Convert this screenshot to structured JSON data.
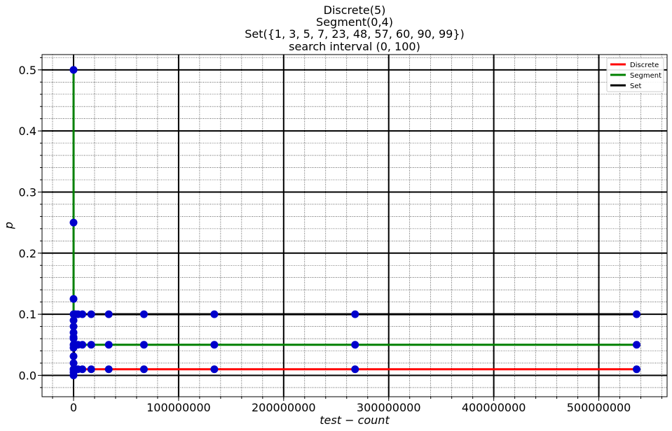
{
  "chart_data": {
    "type": "line",
    "title_lines": [
      "Discrete(5)",
      "Segment(0,4)",
      "Set({1, 3, 5, 7, 23, 48, 57, 60, 90, 99})",
      "search interval (0, 100)"
    ],
    "xlabel": "test − count",
    "ylabel": "p",
    "xlim": [
      -30000000,
      565000000
    ],
    "ylim": [
      -0.035,
      0.525
    ],
    "x_ticks": [
      0,
      100000000,
      200000000,
      300000000,
      400000000,
      500000000
    ],
    "x_tick_labels": [
      "0",
      "100000000",
      "200000000",
      "300000000",
      "400000000",
      "500000000"
    ],
    "y_ticks": [
      0.0,
      0.1,
      0.2,
      0.3,
      0.4,
      0.5
    ],
    "y_tick_labels": [
      "0.0",
      "0.1",
      "0.2",
      "0.3",
      "0.4",
      "0.5"
    ],
    "grid": true,
    "legend_position": "top-right",
    "marker_color": "#0000cc",
    "series": [
      {
        "name": "Discrete",
        "color": "#ff0000",
        "x": [
          0,
          1000000,
          2100000,
          4200000,
          8400000,
          16800000,
          33500000,
          67000000,
          134000000,
          268000000,
          536000000
        ],
        "y": [
          0.01,
          0.01,
          0.01,
          0.01,
          0.01,
          0.01,
          0.01,
          0.01,
          0.01,
          0.01,
          0.01
        ]
      },
      {
        "name": "Segment",
        "color": "#008000",
        "x": [
          0,
          0,
          0,
          0,
          0,
          0,
          0,
          1000000,
          2100000,
          4200000,
          8400000,
          16800000,
          33500000,
          67000000,
          134000000,
          268000000,
          536000000
        ],
        "y": [
          0.5,
          0.25,
          0.125,
          0.0625,
          0.03125,
          0.05,
          0.045,
          0.05,
          0.05,
          0.05,
          0.05,
          0.05,
          0.05,
          0.05,
          0.05,
          0.05,
          0.05
        ]
      },
      {
        "name": "Set",
        "color": "#000000",
        "x": [
          0,
          0,
          0,
          0,
          0,
          0,
          0,
          0,
          0,
          1000000,
          2100000,
          4200000,
          8400000,
          16800000,
          33500000,
          67000000,
          134000000,
          268000000,
          536000000
        ],
        "y": [
          0.1,
          0.09,
          0.08,
          0.07,
          0.06,
          0.02,
          0.01,
          0.005,
          0.0,
          0.1,
          0.1,
          0.1,
          0.1,
          0.1,
          0.1,
          0.1,
          0.1,
          0.1,
          0.1
        ]
      }
    ]
  }
}
